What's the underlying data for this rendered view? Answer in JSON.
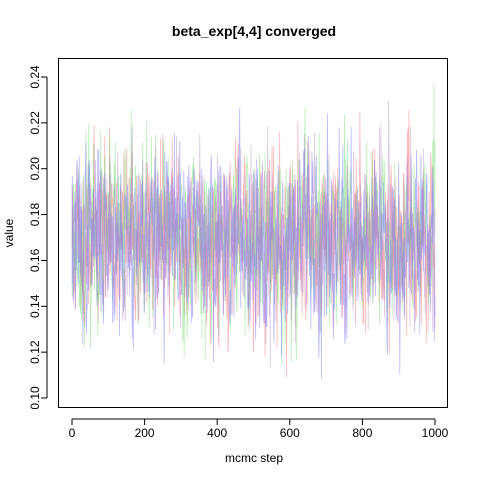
{
  "chart_data": {
    "type": "line",
    "title": "beta_exp[4,4] converged",
    "xlabel": "mcmc step",
    "ylabel": "value",
    "xlim": [
      0,
      1000
    ],
    "ylim": [
      0.1,
      0.24
    ],
    "x_ticks": [
      0,
      200,
      400,
      600,
      800,
      1000
    ],
    "x_tick_labels": [
      "0",
      "200",
      "400",
      "600",
      "800",
      "1000"
    ],
    "y_ticks": [
      0.1,
      0.12,
      0.14,
      0.16,
      0.18,
      0.2,
      0.22,
      0.24
    ],
    "y_tick_labels": [
      "0.10",
      "0.12",
      "0.14",
      "0.16",
      "0.18",
      "0.20",
      "0.22",
      "0.24"
    ],
    "grid": false,
    "legend": "none",
    "n_steps": 1000,
    "series": [
      {
        "color": "#ff8080",
        "opacity": 0.55,
        "mean": 0.17,
        "sd": 0.018,
        "seed": 11
      },
      {
        "color": "#80e080",
        "opacity": 0.55,
        "mean": 0.17,
        "sd": 0.018,
        "seed": 23
      },
      {
        "color": "#8080ff",
        "opacity": 0.55,
        "mean": 0.17,
        "sd": 0.018,
        "seed": 37
      },
      {
        "color": "#b080c0",
        "opacity": 0.45,
        "mean": 0.17,
        "sd": 0.017,
        "seed": 51
      }
    ]
  }
}
